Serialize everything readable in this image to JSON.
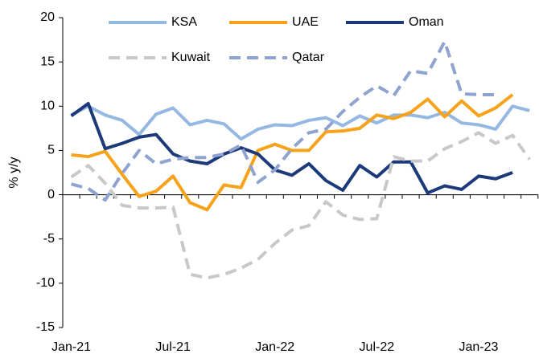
{
  "chart_data": {
    "type": "line",
    "y_label": "% y/y",
    "categories": [
      "Jan-21",
      null,
      null,
      null,
      null,
      null,
      "Jul-21",
      null,
      null,
      null,
      null,
      null,
      "Jan-22",
      null,
      null,
      null,
      null,
      null,
      "Jul-22",
      null,
      null,
      null,
      null,
      null,
      "Jan-23",
      null,
      null,
      null
    ],
    "ylim": [
      -15,
      20
    ],
    "yticks": [
      -15,
      -10,
      -5,
      0,
      5,
      10,
      15,
      20
    ],
    "series": [
      {
        "name": "KSA",
        "color": "#95b8e3",
        "dashed": false,
        "values": [
          9.0,
          10.0,
          9.0,
          8.4,
          6.8,
          9.1,
          9.8,
          7.9,
          8.4,
          8.0,
          6.3,
          7.4,
          7.9,
          7.8,
          8.4,
          8.7,
          7.8,
          8.9,
          8.1,
          9.0,
          9.0,
          8.7,
          9.3,
          8.1,
          7.9,
          7.4,
          10.0,
          9.5
        ]
      },
      {
        "name": "UAE",
        "color": "#f7a21b",
        "dashed": false,
        "values": [
          4.5,
          4.3,
          4.9,
          2.3,
          -0.2,
          0.4,
          2.1,
          -0.9,
          -1.7,
          1.1,
          0.8,
          5.0,
          5.7,
          5.0,
          5.0,
          7.1,
          7.2,
          7.5,
          9.0,
          8.6,
          9.3,
          10.8,
          8.8,
          10.6,
          8.9,
          9.8,
          11.3,
          null
        ]
      },
      {
        "name": "Oman",
        "color": "#1c3a7a",
        "dashed": false,
        "values": [
          8.9,
          10.3,
          5.2,
          5.8,
          6.5,
          6.8,
          4.6,
          3.8,
          3.5,
          4.6,
          5.3,
          4.6,
          2.8,
          2.2,
          3.5,
          1.6,
          0.5,
          3.3,
          2.0,
          3.7,
          3.7,
          0.2,
          1.0,
          0.6,
          2.1,
          1.8,
          2.5,
          null
        ]
      },
      {
        "name": "Kuwait",
        "color": "#c8c8c8",
        "dashed": true,
        "values": [
          2.0,
          3.3,
          1.3,
          -1.2,
          -1.5,
          -1.5,
          -1.4,
          -9.0,
          -9.4,
          -9.0,
          -8.3,
          -7.3,
          -5.5,
          -4.0,
          -3.5,
          -0.8,
          -2.3,
          -2.8,
          -2.7,
          4.3,
          3.8,
          3.8,
          5.2,
          6.0,
          7.0,
          5.8,
          6.7,
          4.0
        ]
      },
      {
        "name": "Qatar",
        "color": "#8ea3cf",
        "dashed": true,
        "values": [
          1.2,
          0.7,
          -0.6,
          2.4,
          5.0,
          3.5,
          4.0,
          4.2,
          4.2,
          4.6,
          5.6,
          1.4,
          2.8,
          5.2,
          7.0,
          7.4,
          9.4,
          11.0,
          12.3,
          11.2,
          14.0,
          13.7,
          17.3,
          11.4,
          11.3,
          11.3,
          null,
          null
        ]
      }
    ]
  }
}
